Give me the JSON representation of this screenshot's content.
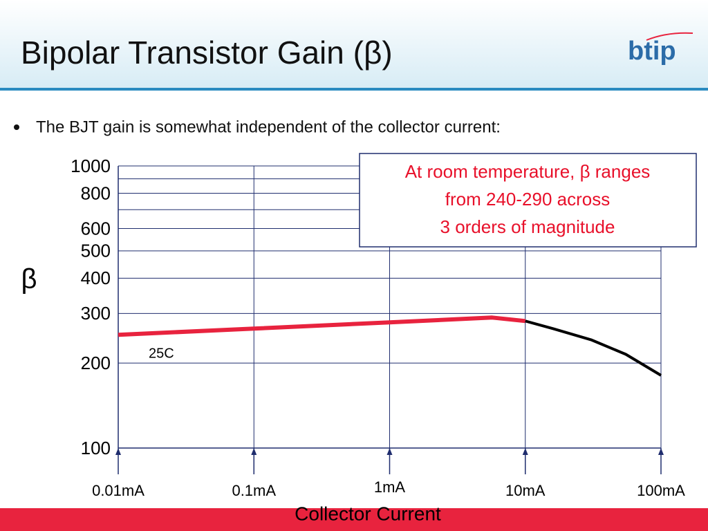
{
  "slide": {
    "title": "Bipolar Transistor Gain (β)",
    "logo": "btip",
    "bullet": "The BJT gain is somewhat independent of the collector current:"
  },
  "chart_data": {
    "type": "line",
    "annotation": [
      "At room temperature, β ranges",
      "from 240-290 across",
      "3 orders of magnitude"
    ],
    "y_label": "β",
    "x_label": "Collector Current",
    "xscale": "log",
    "yscale": "log",
    "grid": true,
    "xlim": [
      0.01,
      100
    ],
    "ylim": [
      100,
      1000
    ],
    "xticks": [
      {
        "value": 0.01,
        "label": "0.01mA"
      },
      {
        "value": 0.1,
        "label": "0.1mA"
      },
      {
        "value": 1,
        "label": "1mA"
      },
      {
        "value": 10,
        "label": "10mA"
      },
      {
        "value": 100,
        "label": "100mA"
      }
    ],
    "yticks": [
      100,
      200,
      300,
      400,
      500,
      600,
      800,
      1000
    ],
    "yminor": [
      700,
      900
    ],
    "series": [
      {
        "name": "25C",
        "color": "#e8233e",
        "x": [
          0.01,
          0.1,
          1,
          5.7,
          10
        ],
        "values": [
          252,
          265,
          279,
          290,
          282
        ]
      },
      {
        "color": "#000000",
        "x": [
          10,
          16,
          30.5,
          55,
          100
        ],
        "values": [
          282,
          265,
          242,
          215,
          181
        ]
      }
    ]
  }
}
